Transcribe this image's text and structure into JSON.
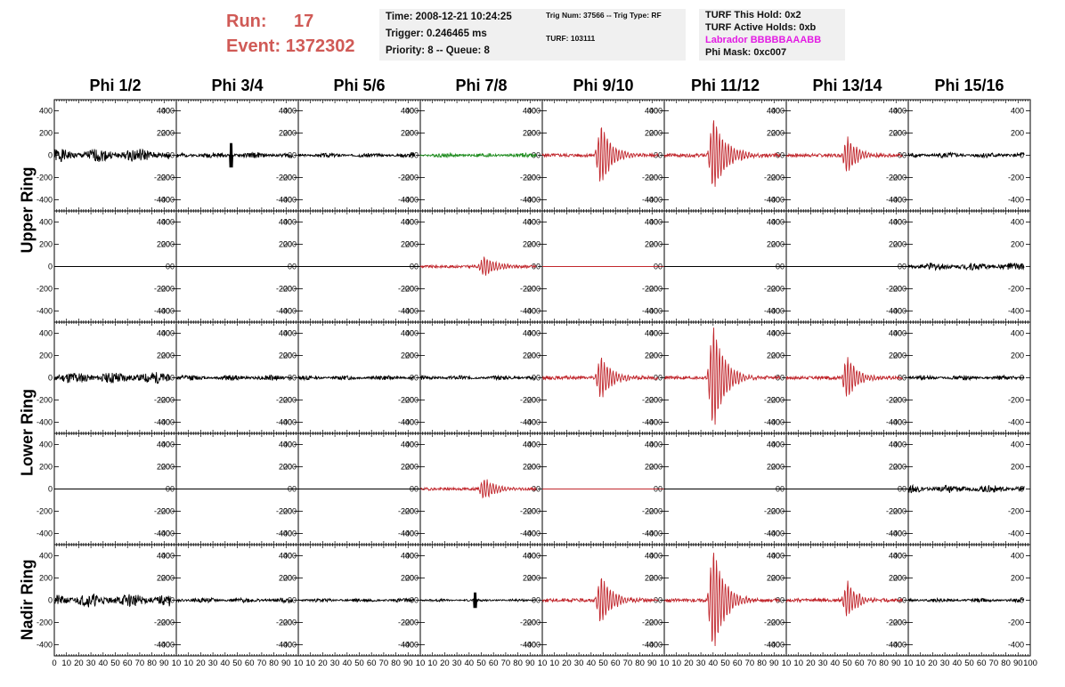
{
  "header": {
    "run_label": "Run:",
    "run_value": "17",
    "event_label": "Event:",
    "event_value": "1372302",
    "time": "Time: 2008-12-21 10:24:25",
    "trigger": "Trigger: 0.246465 ms",
    "priority": "Priority: 8 -- Queue: 8",
    "trig_num": "Trig Num: 37566 -- Trig Type: RF",
    "turf": "TURF: 103111",
    "turf_hold": "TURF This Hold: 0x2",
    "turf_active": "TURF Active Holds: 0xb",
    "labrador": "Labrador BBBBBAAABB",
    "phi_mask": "Phi Mask: 0xc007"
  },
  "colors": {
    "title_red": "#d05a56",
    "info_bg": "#f0f0f0",
    "labrador_magenta": "#e31ce3",
    "trace_black": "#000000",
    "trace_red": "#c1272d",
    "trace_green": "#1f8c1f"
  },
  "columns": [
    "Phi 1/2",
    "Phi 3/4",
    "Phi 5/6",
    "Phi 7/8",
    "Phi 9/10",
    "Phi 11/12",
    "Phi 13/14",
    "Phi 15/16"
  ],
  "rows": [
    "Upper Ring",
    "Lower Ring",
    "Nadir Ring"
  ],
  "chart_data": {
    "type": "line",
    "description": "Grid of waveform traces, 5 rows x 8 phi sectors",
    "x_ticks": [
      0,
      10,
      20,
      30,
      40,
      50,
      60,
      70,
      80,
      90,
      100
    ],
    "x_tick_labels_first": [
      "0",
      "10",
      "20",
      "30",
      "40",
      "50",
      "60",
      "70",
      "80",
      "90",
      "10"
    ],
    "x_tick_labels_middle": [
      "10",
      "20",
      "30",
      "40",
      "50",
      "60",
      "70",
      "80",
      "90",
      "10"
    ],
    "x_tick_labels_last": [
      "10",
      "20",
      "30",
      "40",
      "50",
      "60",
      "70",
      "80",
      "90",
      "100"
    ],
    "y_ticks": [
      -400,
      -200,
      0,
      200,
      400
    ],
    "ylim": [
      -500,
      500
    ],
    "xlim": [
      0,
      100
    ],
    "grid": false,
    "panels": [
      [
        {
          "color": "black",
          "kind": "noise",
          "amp": 60,
          "seed": 1
        },
        {
          "color": "black",
          "kind": "noise",
          "amp": 25,
          "seed": 2,
          "spike_x": 45,
          "spike_amp": 110
        },
        {
          "color": "black",
          "kind": "noise",
          "amp": 20,
          "seed": 3
        },
        {
          "color": "green",
          "kind": "noise",
          "amp": 20,
          "seed": 4
        },
        {
          "color": "red",
          "kind": "pulse",
          "amp": 280,
          "center": 48,
          "decay": 9,
          "noise": 15,
          "seed": 5
        },
        {
          "color": "red",
          "kind": "pulse",
          "amp": 340,
          "center": 40,
          "decay": 10,
          "noise": 15,
          "seed": 6
        },
        {
          "color": "red",
          "kind": "pulse",
          "amp": 170,
          "center": 50,
          "decay": 8,
          "noise": 15,
          "seed": 7
        },
        {
          "color": "black",
          "kind": "noise",
          "amp": 25,
          "seed": 8
        }
      ],
      [
        {
          "color": "black",
          "kind": "flat"
        },
        {
          "color": "black",
          "kind": "flat"
        },
        {
          "color": "black",
          "kind": "flat"
        },
        {
          "color": "red",
          "kind": "pulse",
          "amp": 90,
          "center": 52,
          "decay": 10,
          "noise": 12,
          "seed": 9
        },
        {
          "color": "red",
          "kind": "flat"
        },
        {
          "color": "black",
          "kind": "flat"
        },
        {
          "color": "black",
          "kind": "flat"
        },
        {
          "color": "black",
          "kind": "noise",
          "amp": 35,
          "seed": 10
        }
      ],
      [
        {
          "color": "black",
          "kind": "noise",
          "amp": 55,
          "seed": 11
        },
        {
          "color": "black",
          "kind": "noise",
          "amp": 25,
          "seed": 12
        },
        {
          "color": "black",
          "kind": "noise",
          "amp": 20,
          "seed": 13
        },
        {
          "color": "black",
          "kind": "noise",
          "amp": 20,
          "seed": 14
        },
        {
          "color": "red",
          "kind": "pulse",
          "amp": 200,
          "center": 48,
          "decay": 9,
          "noise": 15,
          "seed": 15
        },
        {
          "color": "red",
          "kind": "pulse",
          "amp": 490,
          "center": 40,
          "decay": 9,
          "noise": 15,
          "seed": 16
        },
        {
          "color": "red",
          "kind": "pulse",
          "amp": 200,
          "center": 50,
          "decay": 8,
          "noise": 15,
          "seed": 17
        },
        {
          "color": "black",
          "kind": "noise",
          "amp": 20,
          "seed": 18
        }
      ],
      [
        {
          "color": "black",
          "kind": "flat"
        },
        {
          "color": "black",
          "kind": "flat"
        },
        {
          "color": "black",
          "kind": "flat"
        },
        {
          "color": "red",
          "kind": "pulse",
          "amp": 100,
          "center": 52,
          "decay": 10,
          "noise": 12,
          "seed": 19
        },
        {
          "color": "red",
          "kind": "flat"
        },
        {
          "color": "black",
          "kind": "flat"
        },
        {
          "color": "black",
          "kind": "flat"
        },
        {
          "color": "black",
          "kind": "noise",
          "amp": 35,
          "seed": 20
        }
      ],
      [
        {
          "color": "black",
          "kind": "noise",
          "amp": 60,
          "seed": 21
        },
        {
          "color": "black",
          "kind": "noise",
          "amp": 22,
          "seed": 22
        },
        {
          "color": "black",
          "kind": "noise",
          "amp": 18,
          "seed": 23
        },
        {
          "color": "black",
          "kind": "noise",
          "amp": 12,
          "seed": 24,
          "spike_x": 45,
          "spike_amp": 70
        },
        {
          "color": "red",
          "kind": "pulse",
          "amp": 220,
          "center": 48,
          "decay": 9,
          "noise": 15,
          "seed": 25
        },
        {
          "color": "red",
          "kind": "pulse",
          "amp": 490,
          "center": 40,
          "decay": 9,
          "noise": 15,
          "seed": 26
        },
        {
          "color": "red",
          "kind": "pulse",
          "amp": 170,
          "center": 50,
          "decay": 8,
          "noise": 15,
          "seed": 27
        },
        {
          "color": "black",
          "kind": "noise",
          "amp": 18,
          "seed": 28
        }
      ]
    ]
  }
}
